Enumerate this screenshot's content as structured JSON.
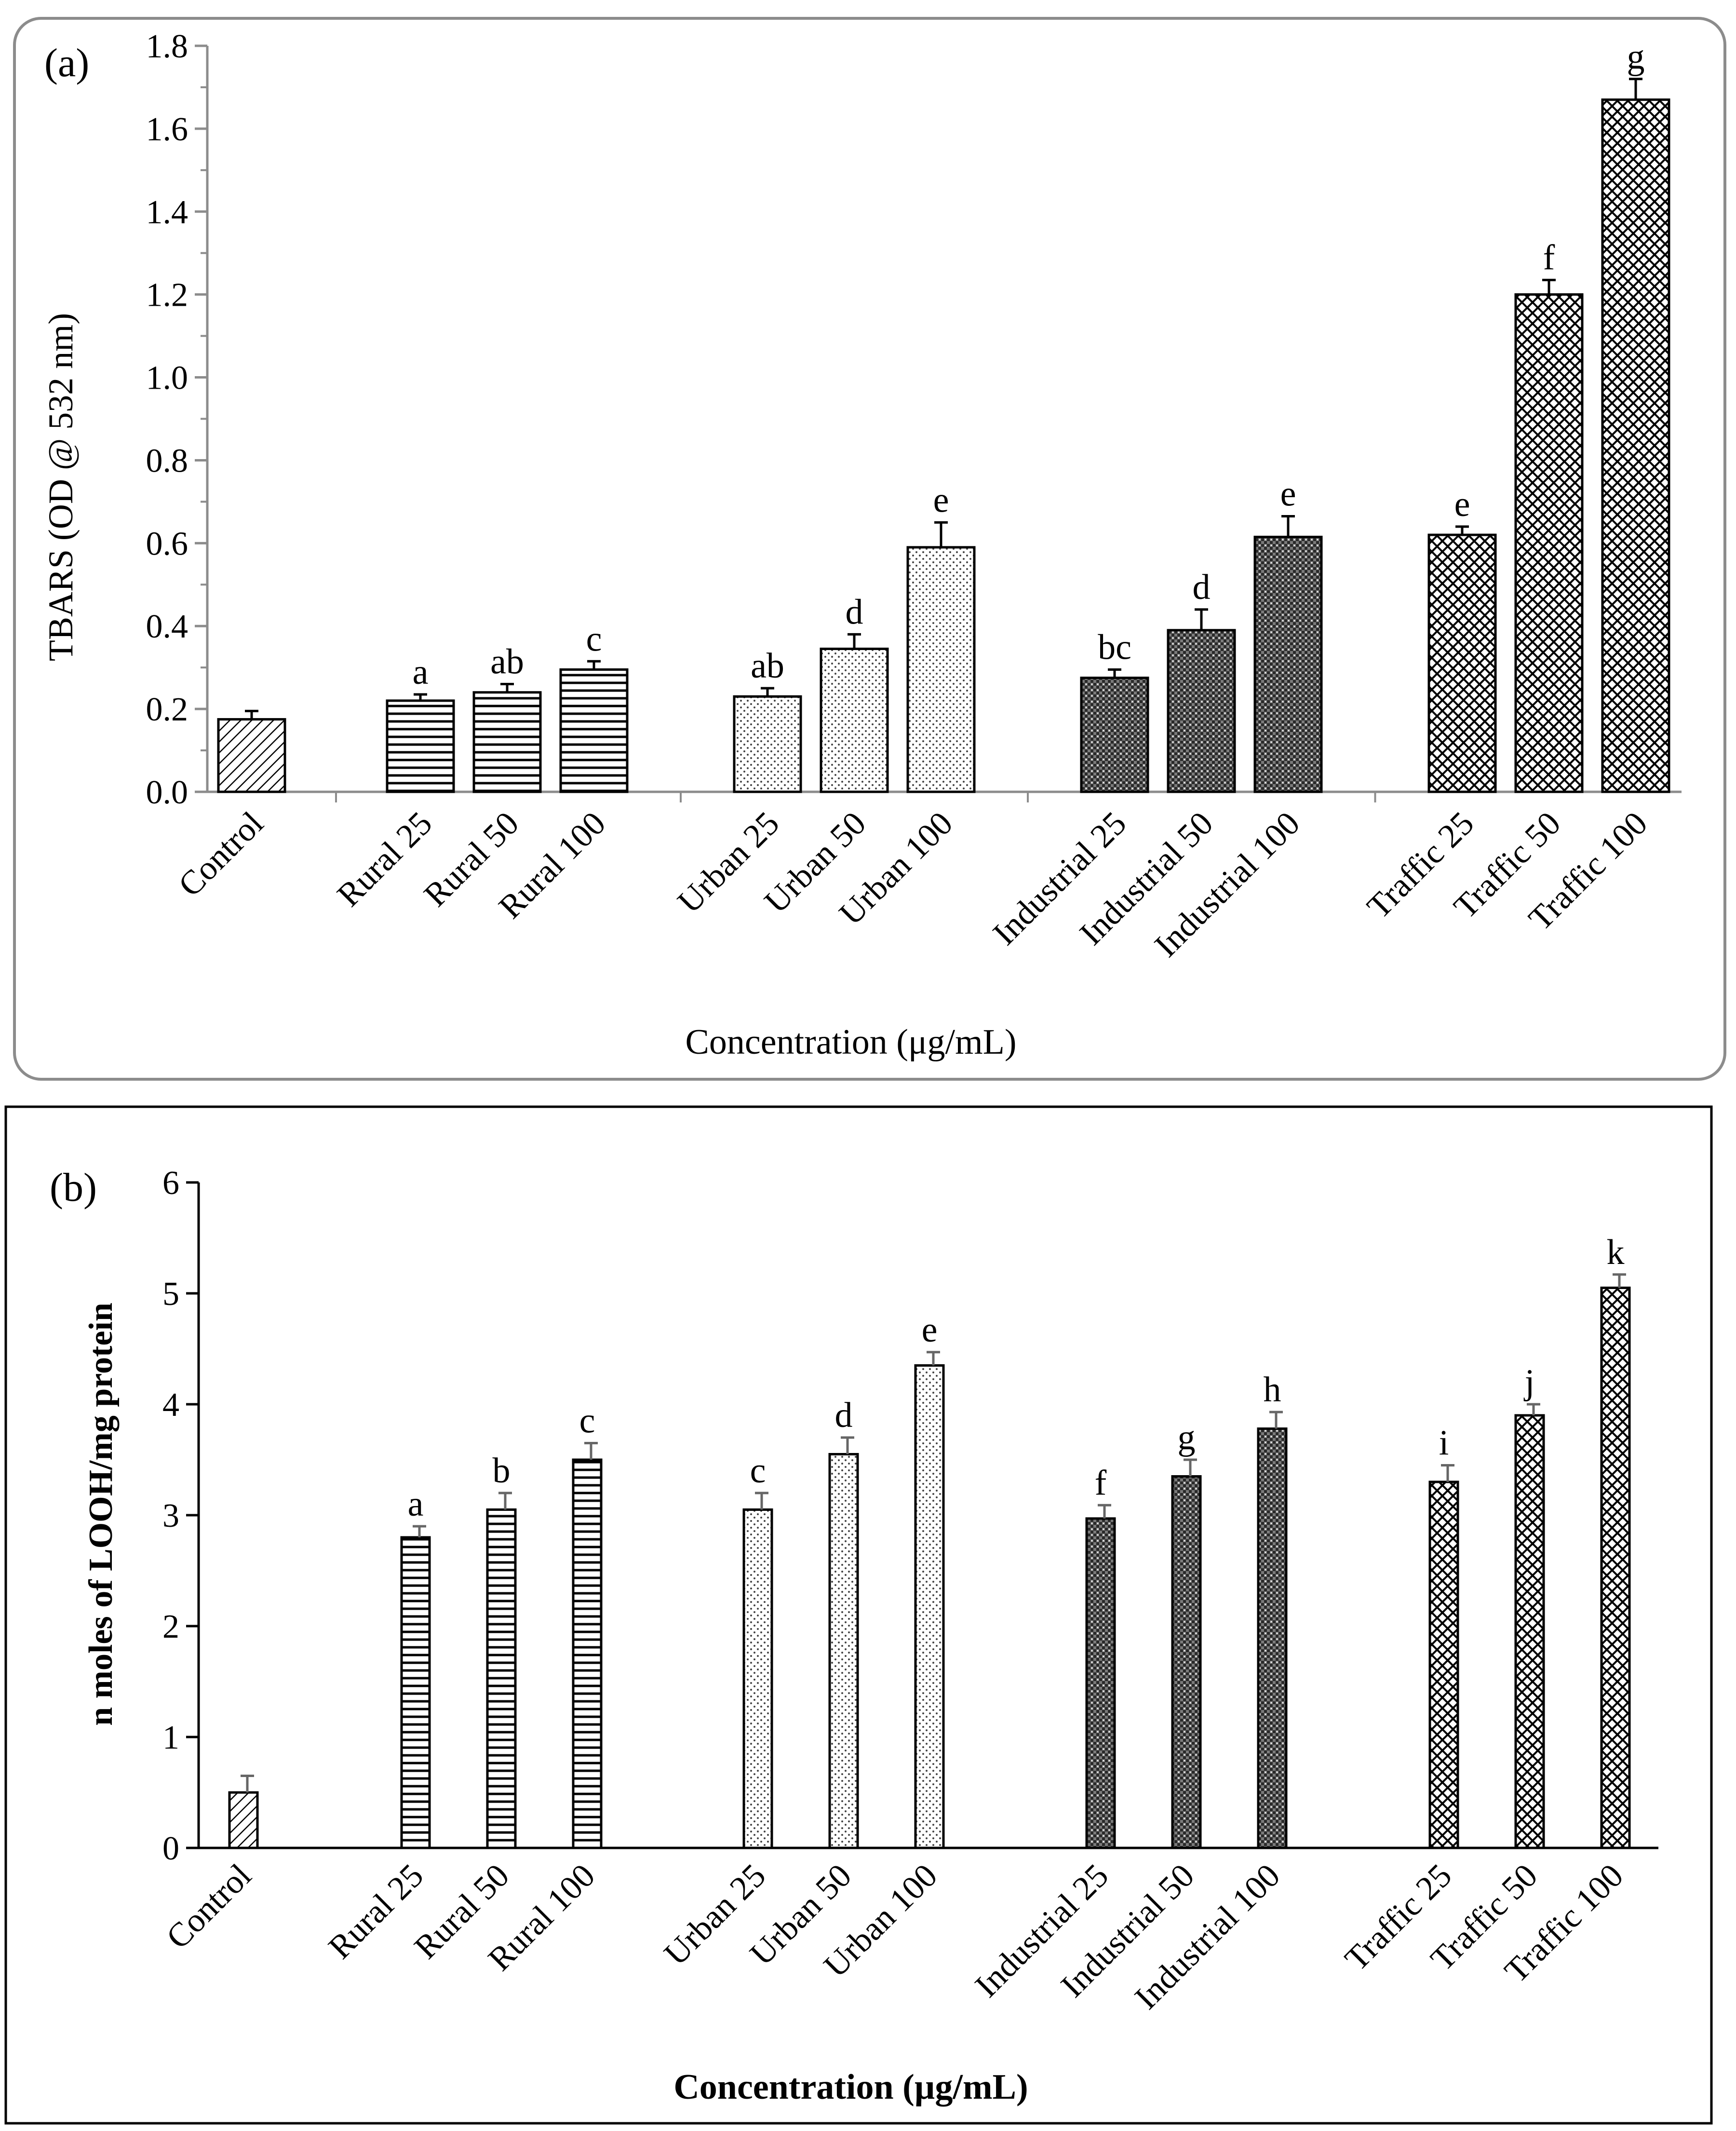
{
  "chart_data": [
    {
      "type": "bar",
      "panel_label": "(a)",
      "xlabel": "Concentration (μg/mL)",
      "ylabel": "TBARS (OD @ 532 nm)",
      "ylim": [
        0,
        1.8
      ],
      "yticks": [
        "0.0",
        "0.2",
        "0.4",
        "0.6",
        "0.8",
        "1.0",
        "1.2",
        "1.4",
        "1.6",
        "1.8"
      ],
      "grid": false,
      "categories": [
        "Control",
        "Rural 25",
        "Rural 50",
        "Rural 100",
        "Urban 25",
        "Urban 50",
        "Urban 100",
        "Industrial 25",
        "Industrial 50",
        "Industrial 100",
        "Traffic 25",
        "Traffic 50",
        "Traffic 100"
      ],
      "groups": [
        "Control",
        "Rural",
        "Rural",
        "Rural",
        "Urban",
        "Urban",
        "Urban",
        "Industrial",
        "Industrial",
        "Industrial",
        "Traffic",
        "Traffic",
        "Traffic"
      ],
      "values": [
        0.175,
        0.22,
        0.24,
        0.295,
        0.23,
        0.345,
        0.59,
        0.275,
        0.39,
        0.615,
        0.62,
        1.2,
        1.67
      ],
      "errors": [
        0.02,
        0.015,
        0.02,
        0.02,
        0.02,
        0.035,
        0.06,
        0.02,
        0.05,
        0.05,
        0.02,
        0.035,
        0.05
      ],
      "letters": [
        "",
        "a",
        "ab",
        "c",
        "ab",
        "d",
        "e",
        "bc",
        "d",
        "e",
        "e",
        "f",
        "g"
      ]
    },
    {
      "type": "bar",
      "panel_label": "(b)",
      "xlabel": "Concentration (µg/mL)",
      "ylabel": "n moles of LOOH/mg protein",
      "ylim": [
        0,
        6
      ],
      "yticks": [
        "0",
        "1",
        "2",
        "3",
        "4",
        "5",
        "6"
      ],
      "grid": false,
      "categories": [
        "Control",
        "Rural 25",
        "Rural 50",
        "Rural 100",
        "Urban 25",
        "Urban 50",
        "Urban 100",
        "Industrial 25",
        "Industrial 50",
        "Industrial 100",
        "Traffic 25",
        "Traffic 50",
        "Traffic 100"
      ],
      "groups": [
        "Control",
        "Rural",
        "Rural",
        "Rural",
        "Urban",
        "Urban",
        "Urban",
        "Industrial",
        "Industrial",
        "Industrial",
        "Traffic",
        "Traffic",
        "Traffic"
      ],
      "values": [
        0.5,
        2.8,
        3.05,
        3.5,
        3.05,
        3.55,
        4.35,
        2.97,
        3.35,
        3.78,
        3.3,
        3.9,
        5.05
      ],
      "errors": [
        0.15,
        0.1,
        0.15,
        0.15,
        0.15,
        0.15,
        0.12,
        0.12,
        0.15,
        0.15,
        0.15,
        0.1,
        0.12
      ],
      "letters": [
        "",
        "a",
        "b",
        "c",
        "c",
        "d",
        "e",
        "f",
        "g",
        "h",
        "i",
        "j",
        "k"
      ]
    }
  ]
}
